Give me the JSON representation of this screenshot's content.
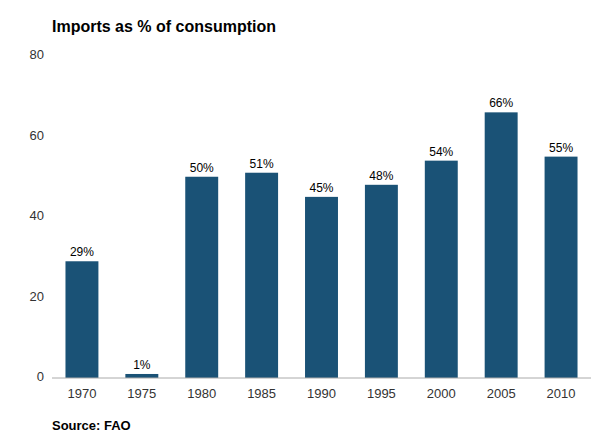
{
  "chart_data": {
    "type": "bar",
    "title": "Imports as % of consumption",
    "categories": [
      "1970",
      "1975",
      "1980",
      "1985",
      "1990",
      "1995",
      "2000",
      "2005",
      "2010"
    ],
    "values": [
      29,
      1,
      50,
      51,
      45,
      48,
      54,
      66,
      55
    ],
    "value_labels": [
      "29%",
      "1%",
      "50%",
      "51%",
      "45%",
      "48%",
      "54%",
      "66%",
      "55%"
    ],
    "data_labels": true,
    "color": "#1a5276",
    "ylim": [
      0,
      80
    ],
    "yticks": [
      0,
      20,
      40,
      60,
      80
    ],
    "grid": false,
    "annotations": [
      "Source: FAO"
    ]
  }
}
